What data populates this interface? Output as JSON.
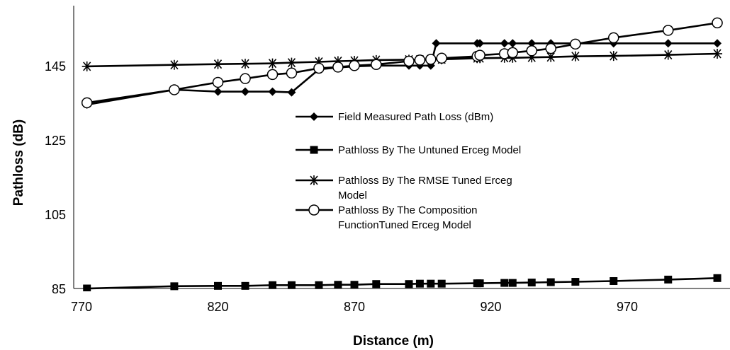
{
  "chart_data": {
    "type": "line",
    "title": "",
    "xlabel": "Distance (m)",
    "ylabel": "Pathloss (dB)",
    "xlim": [
      770,
      1010
    ],
    "ylim": [
      85,
      160
    ],
    "x_ticks": [
      "770",
      "820",
      "870",
      "920",
      "970"
    ],
    "y_ticks": [
      "85",
      "105",
      "125",
      "145"
    ],
    "legend_position": "center",
    "legend_lines": [
      [
        "Field Measured Path Loss (dBm)"
      ],
      [
        "Pathloss By The Untuned Erceg  Model"
      ],
      [
        "Pathloss By The RMSE Tuned Erceg",
        "Model"
      ],
      [
        "Pathloss By The Composition",
        "FunctionTuned Erceg  Model"
      ]
    ],
    "series": [
      {
        "name": "Field Measured Path Loss (dBm)",
        "marker": "diamond",
        "x": [
          772,
          804,
          820,
          830,
          840,
          847,
          857,
          864,
          870,
          878,
          890,
          894,
          898,
          900,
          915,
          916,
          925,
          928,
          935,
          942,
          951,
          965,
          985,
          1003
        ],
        "y": [
          134.5,
          138.5,
          138.0,
          138.0,
          138.0,
          137.8,
          144.0,
          144.5,
          144.8,
          145.0,
          145.0,
          145.0,
          145.0,
          151.0,
          151.0,
          151.0,
          151.0,
          151.0,
          151.0,
          151.0,
          151.0,
          151.0,
          151.0,
          151.0
        ]
      },
      {
        "name": "Pathloss By The Untuned Erceg  Model",
        "marker": "square",
        "x": [
          772,
          804,
          820,
          830,
          840,
          847,
          857,
          864,
          870,
          878,
          890,
          894,
          898,
          902,
          915,
          916,
          925,
          928,
          935,
          942,
          951,
          965,
          985,
          1003
        ],
        "y": [
          85.0,
          85.6,
          85.7,
          85.7,
          85.9,
          85.9,
          85.9,
          86.0,
          86.0,
          86.2,
          86.2,
          86.3,
          86.3,
          86.3,
          86.4,
          86.4,
          86.5,
          86.5,
          86.6,
          86.7,
          86.8,
          87.0,
          87.4,
          87.8
        ]
      },
      {
        "name": "Pathloss By The RMSE Tuned Erceg Model",
        "marker": "asterisk",
        "x": [
          772,
          804,
          820,
          830,
          840,
          847,
          857,
          864,
          870,
          878,
          890,
          894,
          898,
          902,
          915,
          916,
          925,
          928,
          935,
          942,
          951,
          965,
          985,
          1003
        ],
        "y": [
          144.8,
          145.2,
          145.4,
          145.5,
          145.6,
          145.8,
          146.0,
          146.2,
          146.3,
          146.5,
          146.6,
          146.6,
          146.7,
          146.7,
          147.0,
          147.0,
          147.1,
          147.1,
          147.2,
          147.3,
          147.5,
          147.6,
          147.9,
          148.2
        ]
      },
      {
        "name": "Pathloss By The Composition FunctionTuned Erceg  Model",
        "marker": "circle",
        "x": [
          772,
          804,
          820,
          830,
          840,
          847,
          857,
          864,
          870,
          878,
          890,
          894,
          898,
          902,
          915,
          916,
          925,
          928,
          935,
          942,
          951,
          965,
          985,
          1003
        ],
        "y": [
          135.0,
          138.5,
          140.5,
          141.5,
          142.6,
          143.0,
          144.3,
          144.6,
          145.0,
          145.3,
          146.2,
          146.5,
          146.7,
          147.0,
          147.5,
          147.8,
          148.2,
          148.5,
          149.0,
          149.6,
          150.8,
          152.5,
          154.5,
          156.5
        ]
      }
    ]
  }
}
